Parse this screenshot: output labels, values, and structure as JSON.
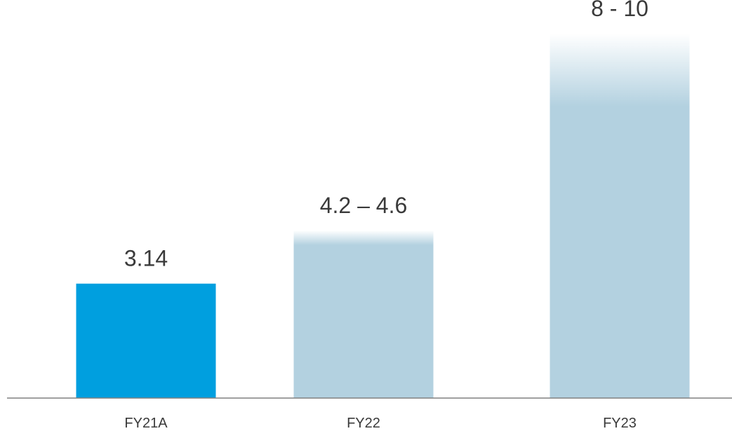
{
  "chart_data": {
    "type": "bar",
    "categories": [
      "FY21A",
      "FY22",
      "FY23"
    ],
    "values": [
      3.14,
      4.4,
      9
    ],
    "ranges": [
      null,
      [
        4.2,
        4.6
      ],
      [
        8,
        10
      ]
    ],
    "value_labels": [
      "3.14",
      "4.2 – 4.6",
      "8 - 10"
    ],
    "title": "",
    "xlabel": "",
    "ylabel": "",
    "ylim": [
      0,
      11
    ],
    "grid": false,
    "legend": "none",
    "colors": {
      "actual": "#009fdf",
      "forecast": "#b3d1e0",
      "axis": "#808080",
      "text": "#3a3a3a"
    }
  }
}
